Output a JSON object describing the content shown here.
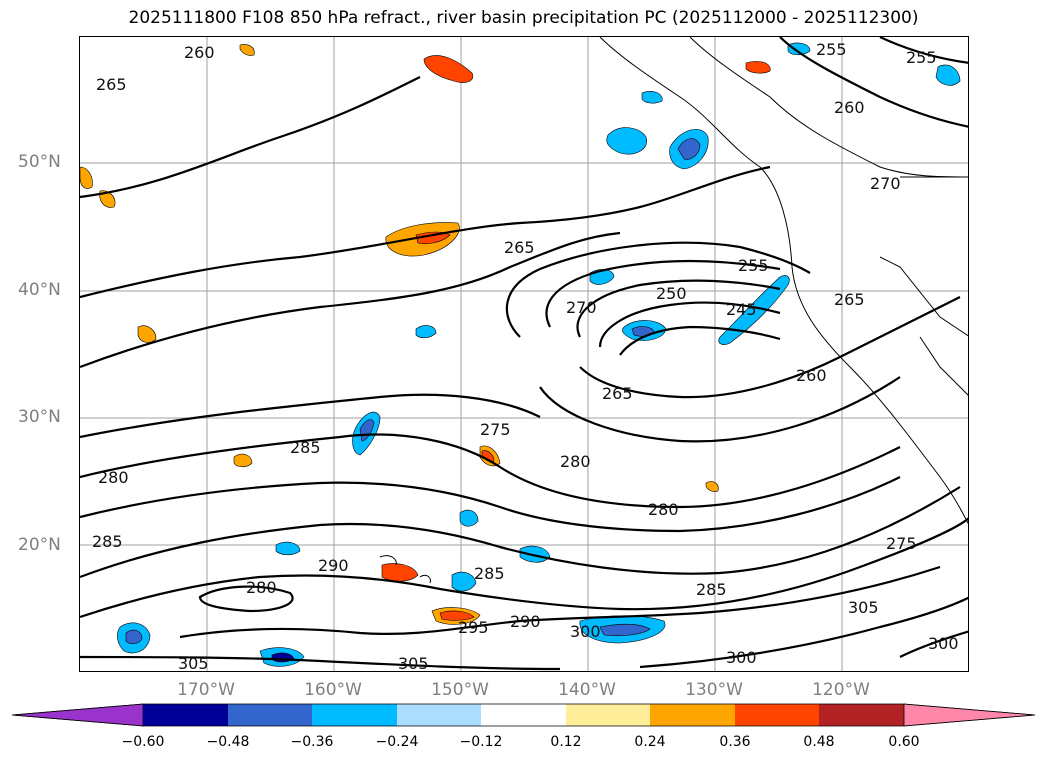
{
  "title": "2025111800 F108 850 hPa refract., river basin precipitation PC (2025112000 - 2025112300)",
  "lat_labels": [
    "50°N",
    "40°N",
    "30°N",
    "20°N"
  ],
  "lon_labels": [
    "170°W",
    "160°W",
    "150°W",
    "140°W",
    "130°W",
    "120°W"
  ],
  "colorbar": {
    "tick_labels": [
      "−0.60",
      "−0.48",
      "−0.36",
      "−0.24",
      "−0.12",
      "0.12",
      "0.24",
      "0.36",
      "0.48",
      "0.60"
    ],
    "colors": [
      "#9933cc",
      "#000099",
      "#3366cc",
      "#00bbff",
      "#aaddff",
      "#ffffff",
      "#ffee99",
      "#ffa500",
      "#ff4400",
      "#b22222",
      "#ff88aa"
    ]
  },
  "contour_labels": [
    {
      "text": "260"
    },
    {
      "text": "265"
    },
    {
      "text": "265"
    },
    {
      "text": "255"
    },
    {
      "text": "255"
    },
    {
      "text": "260"
    },
    {
      "text": "270"
    },
    {
      "text": "265"
    },
    {
      "text": "270"
    },
    {
      "text": "250"
    },
    {
      "text": "255"
    },
    {
      "text": "245"
    },
    {
      "text": "260"
    },
    {
      "text": "265"
    },
    {
      "text": "275"
    },
    {
      "text": "280"
    },
    {
      "text": "285"
    },
    {
      "text": "280"
    },
    {
      "text": "285"
    },
    {
      "text": "280"
    },
    {
      "text": "290"
    },
    {
      "text": "280"
    },
    {
      "text": "285"
    },
    {
      "text": "285"
    },
    {
      "text": "290"
    },
    {
      "text": "295"
    },
    {
      "text": "300"
    },
    {
      "text": "275"
    },
    {
      "text": "305"
    },
    {
      "text": "300"
    },
    {
      "text": "305"
    },
    {
      "text": "305"
    },
    {
      "text": "300"
    }
  ]
}
